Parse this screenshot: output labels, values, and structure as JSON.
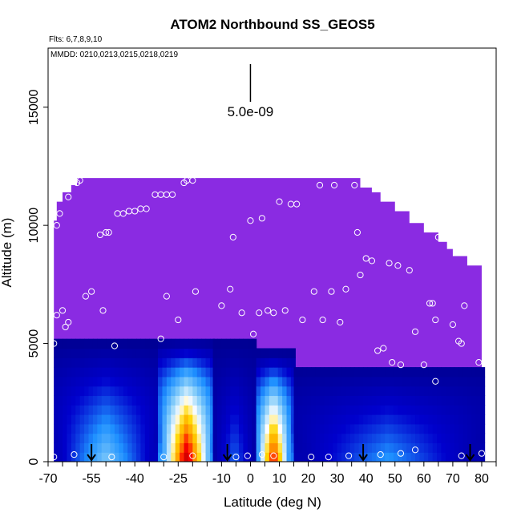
{
  "chart_data": {
    "type": "heatmap",
    "title": "ATOM2 Northbound SS_GEOS5",
    "flights_note": "Flts: 6,7,8,9,10",
    "dates_note": "MMDD: 0210,0213,0215,0218,0219",
    "scale_label": "5.0e-09",
    "xlabel": "Latitude (deg N)",
    "ylabel": "Altitude (m)",
    "xlim": [
      -70,
      85
    ],
    "ylim": [
      0,
      17500
    ],
    "x_ticks": [
      -70,
      -65,
      -60,
      -55,
      -50,
      -45,
      -40,
      -35,
      -30,
      -25,
      -20,
      -15,
      -10,
      -5,
      0,
      5,
      10,
      15,
      20,
      25,
      30,
      35,
      40,
      45,
      50,
      55,
      60,
      65,
      70,
      75,
      80,
      85
    ],
    "x_tick_labels": [
      "-70",
      "-55",
      "-40",
      "-25",
      "-10",
      "0",
      "10",
      "20",
      "30",
      "40",
      "50",
      "60",
      "70",
      "80"
    ],
    "x_tick_label_values": [
      -70,
      -55,
      -40,
      -25,
      -10,
      0,
      10,
      20,
      30,
      40,
      50,
      60,
      70,
      80
    ],
    "y_ticks": [
      0,
      5000,
      10000,
      15000
    ],
    "y_tick_labels": [
      "0",
      "5000",
      "10000",
      "15000"
    ],
    "background_color": "#8a2be2",
    "colormap": [
      "#8a2be2",
      "#00008b",
      "#0000cd",
      "#1e90ff",
      "#87cefa",
      "#ffffff",
      "#ffd700",
      "#ff8c00",
      "#ff0000",
      "#cc0000"
    ],
    "top_envelope": [
      [
        -68,
        10200
      ],
      [
        -67,
        11000
      ],
      [
        -65,
        11400
      ],
      [
        -62,
        11700
      ],
      [
        -60,
        12000
      ],
      [
        -25,
        12000
      ],
      [
        35,
        12000
      ],
      [
        38,
        11600
      ],
      [
        42,
        11400
      ],
      [
        45,
        11000
      ],
      [
        50,
        10600
      ],
      [
        55,
        10100
      ],
      [
        60,
        9700
      ],
      [
        65,
        9300
      ],
      [
        68,
        9000
      ],
      [
        70,
        8700
      ],
      [
        75,
        8300
      ],
      [
        80,
        8000
      ]
    ],
    "concentration_regions": [
      {
        "lat_range": [
          -68,
          -32
        ],
        "alt_range": [
          0,
          5000
        ],
        "peak": 0.35
      },
      {
        "lat_range": [
          -32,
          -13
        ],
        "alt_range": [
          0,
          5000
        ],
        "peak": 1.0,
        "center_lat": -22
      },
      {
        "lat_range": [
          -13,
          2
        ],
        "alt_range": [
          0,
          5000
        ],
        "peak": 0.2
      },
      {
        "lat_range": [
          2,
          15
        ],
        "alt_range": [
          0,
          4500
        ],
        "peak": 0.9,
        "center_lat": 8
      },
      {
        "lat_range": [
          15,
          80
        ],
        "alt_range": [
          0,
          4000
        ],
        "peak": 0.25
      }
    ],
    "flight_points": [
      [
        -67,
        10000
      ],
      [
        -66,
        10500
      ],
      [
        -63,
        11200
      ],
      [
        -60,
        11800
      ],
      [
        -59,
        11900
      ],
      [
        -67,
        6200
      ],
      [
        -68,
        5000
      ],
      [
        -65,
        6400
      ],
      [
        -64,
        5700
      ],
      [
        -63,
        5900
      ],
      [
        -57,
        7000
      ],
      [
        -55,
        7200
      ],
      [
        -51,
        6400
      ],
      [
        -47,
        4900
      ],
      [
        -52,
        9600
      ],
      [
        -50,
        9700
      ],
      [
        -49,
        9700
      ],
      [
        -46,
        10500
      ],
      [
        -44,
        10500
      ],
      [
        -42,
        10600
      ],
      [
        -40,
        10600
      ],
      [
        -38,
        10700
      ],
      [
        -36,
        10700
      ],
      [
        -33,
        11300
      ],
      [
        -31,
        11300
      ],
      [
        -29,
        11300
      ],
      [
        -27,
        11300
      ],
      [
        -23,
        11800
      ],
      [
        -22,
        11900
      ],
      [
        -20,
        11900
      ],
      [
        -31,
        5200
      ],
      [
        -29,
        7000
      ],
      [
        -25,
        6000
      ],
      [
        -19,
        7200
      ],
      [
        -10,
        6600
      ],
      [
        -6,
        9500
      ],
      [
        -7,
        7300
      ],
      [
        -3,
        6300
      ],
      [
        0,
        10200
      ],
      [
        1,
        5400
      ],
      [
        3,
        6300
      ],
      [
        4,
        10300
      ],
      [
        6,
        6400
      ],
      [
        8,
        6300
      ],
      [
        10,
        11000
      ],
      [
        12,
        6400
      ],
      [
        14,
        10900
      ],
      [
        16,
        10900
      ],
      [
        18,
        6000
      ],
      [
        22,
        7200
      ],
      [
        24,
        11700
      ],
      [
        25,
        6000
      ],
      [
        28,
        7200
      ],
      [
        29,
        11700
      ],
      [
        31,
        5900
      ],
      [
        33,
        7300
      ],
      [
        36,
        11700
      ],
      [
        37,
        9700
      ],
      [
        38,
        7900
      ],
      [
        40,
        8600
      ],
      [
        42,
        8500
      ],
      [
        44,
        4700
      ],
      [
        46,
        4800
      ],
      [
        48,
        8400
      ],
      [
        49,
        4200
      ],
      [
        51,
        8300
      ],
      [
        52,
        4100
      ],
      [
        55,
        8100
      ],
      [
        57,
        5500
      ],
      [
        60,
        4100
      ],
      [
        62,
        6700
      ],
      [
        63,
        6700
      ],
      [
        64,
        6000
      ],
      [
        64,
        3400
      ],
      [
        65,
        9500
      ],
      [
        70,
        9200
      ],
      [
        70,
        5800
      ],
      [
        72,
        5100
      ],
      [
        73,
        5000
      ],
      [
        74,
        6600
      ],
      [
        79,
        8500
      ],
      [
        79,
        4200
      ],
      [
        -68,
        200
      ],
      [
        -61,
        300
      ],
      [
        -48,
        200
      ],
      [
        -30,
        200
      ],
      [
        -20,
        250
      ],
      [
        -5,
        200
      ],
      [
        -1,
        250
      ],
      [
        4,
        300
      ],
      [
        8,
        250
      ],
      [
        21,
        200
      ],
      [
        27,
        200
      ],
      [
        34,
        250
      ],
      [
        45,
        300
      ],
      [
        52,
        350
      ],
      [
        57,
        500
      ],
      [
        73,
        250
      ],
      [
        80,
        350
      ]
    ],
    "arrows_lat": [
      -55,
      -8,
      39,
      76
    ]
  }
}
